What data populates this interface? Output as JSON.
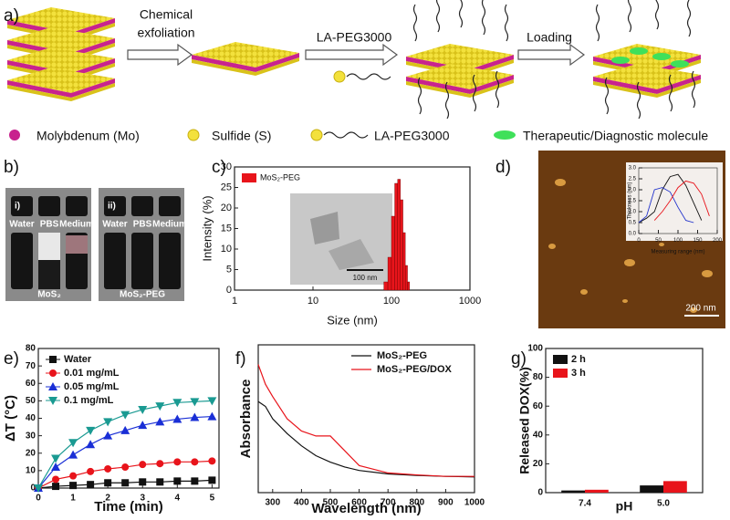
{
  "panels": [
    "a)",
    "b)",
    "c)",
    "d)",
    "e)",
    "f)",
    "g)"
  ],
  "scheme": {
    "steps": [
      [
        "Chemical",
        "exfoliation"
      ],
      [
        "LA-PEG3000"
      ],
      [
        "Loading"
      ]
    ],
    "legend": [
      "Molybdenum (Mo)",
      "Sulfide (S)",
      "LA-PEG3000",
      "Therapeutic/Diagnostic molecule"
    ]
  },
  "photos": [
    {
      "label": "i)",
      "vials": [
        "Water",
        "PBS",
        "Medium"
      ],
      "caption": "MoS₂"
    },
    {
      "label": "ii)",
      "vials": [
        "Water",
        "PBS",
        "Medium"
      ],
      "caption": "MoS₂-PEG"
    }
  ],
  "tem_scale": "100 nm",
  "afm_scale": "200 nm",
  "chart_data": [
    {
      "type": "histogram",
      "xlabel": "Size (nm)",
      "ylabel": "Intensity (%)",
      "xscale": "log",
      "xlim": [
        1,
        1000
      ],
      "xticks": [
        1,
        10,
        100,
        1000
      ],
      "ylim": [
        0,
        30
      ],
      "yticks": [
        0,
        5,
        10,
        15,
        20,
        25,
        30
      ],
      "bins": [
        80,
        90,
        100,
        110,
        120,
        130,
        140,
        150,
        160,
        170
      ],
      "series": [
        {
          "name": "MoS₂-PEG",
          "color": "#e8141b",
          "values": [
            2,
            8,
            18,
            26,
            27,
            22,
            14,
            6,
            2
          ]
        }
      ],
      "legend": "upper left"
    },
    {
      "type": "line",
      "xlabel": "Measuring range (nm)",
      "ylabel": "Thickness (nm)",
      "xlim": [
        0,
        200
      ],
      "xticks": [
        0,
        50,
        100,
        150,
        200
      ],
      "ylim": [
        0,
        3
      ],
      "yticks": [
        {
          "value": 0,
          "label": "0.0"
        },
        {
          "value": 0.5,
          "label": "0.5"
        },
        {
          "value": 1,
          "label": "1.0"
        },
        {
          "value": 1.5,
          "label": "1.5"
        },
        {
          "value": 2,
          "label": "2.0"
        },
        {
          "value": 2.5,
          "label": "2.5"
        },
        {
          "value": 3,
          "label": "3.0"
        }
      ],
      "x": [
        0,
        20,
        40,
        60,
        80,
        100,
        120,
        140,
        160,
        180
      ],
      "series": [
        {
          "color": "#111111",
          "values": [
            0.5,
            0.7,
            1.0,
            2.0,
            2.6,
            2.7,
            2.2,
            1.4,
            0.6,
            null
          ]
        },
        {
          "color": "#2233cc",
          "values": [
            0.5,
            0.8,
            2.0,
            2.1,
            1.9,
            1.2,
            0.6,
            0.5,
            null,
            null
          ]
        },
        {
          "color": "#e8141b",
          "values": [
            null,
            null,
            0.6,
            1.0,
            1.5,
            2.1,
            2.4,
            2.3,
            1.8,
            0.8
          ]
        }
      ]
    },
    {
      "type": "line",
      "xlabel": "Time (min)",
      "ylabel": "ΔT (°C)",
      "xlim": [
        0,
        5.2
      ],
      "xticks": [
        0,
        1,
        2,
        3,
        4,
        5
      ],
      "ylim": [
        0,
        80
      ],
      "yticks": [
        0,
        10,
        20,
        30,
        40,
        50,
        60,
        70,
        80
      ],
      "x": [
        0,
        0.5,
        1,
        1.5,
        2,
        2.5,
        3,
        3.5,
        4,
        4.5,
        5
      ],
      "series": [
        {
          "name": "Water",
          "color": "#111111",
          "marker": "square",
          "values": [
            0,
            1,
            1.5,
            2,
            3,
            3,
            3.5,
            3.5,
            4,
            4,
            4.5
          ]
        },
        {
          "name": "0.01 mg/mL",
          "color": "#e8141b",
          "marker": "circle",
          "values": [
            0,
            5,
            7,
            9.5,
            11,
            12,
            13.5,
            14,
            15,
            15,
            15.5
          ]
        },
        {
          "name": "0.05 mg/mL",
          "color": "#1a2fd6",
          "marker": "triangle",
          "values": [
            0,
            12,
            19,
            25,
            30,
            33,
            36,
            38,
            39.5,
            40.5,
            41
          ]
        },
        {
          "name": "0.1 mg/mL",
          "color": "#1a9a92",
          "marker": "triangle-down",
          "values": [
            0,
            17,
            26,
            33,
            38,
            42,
            45,
            47,
            49,
            49.5,
            50
          ]
        }
      ],
      "legend": "upper left"
    },
    {
      "type": "line",
      "xlabel": "Wavelength (nm)",
      "ylabel": "Absorbance",
      "xlim": [
        250,
        1000
      ],
      "xticks": [
        300,
        400,
        500,
        600,
        700,
        800,
        900,
        1000
      ],
      "ylim": [
        0,
        3
      ],
      "x": [
        250,
        275,
        300,
        350,
        400,
        450,
        500,
        550,
        600,
        700,
        800,
        900,
        1000
      ],
      "series": [
        {
          "name": "MoS₂-PEG",
          "color": "#111111",
          "values": [
            1.85,
            1.75,
            1.5,
            1.2,
            0.95,
            0.75,
            0.62,
            0.52,
            0.45,
            0.38,
            0.35,
            0.33,
            0.32
          ]
        },
        {
          "name": "MoS₂-PEG/DOX",
          "color": "#e8141b",
          "values": [
            2.6,
            2.2,
            1.95,
            1.5,
            1.25,
            1.15,
            1.15,
            0.85,
            0.55,
            0.4,
            0.36,
            0.33,
            0.33
          ]
        }
      ],
      "legend": "upper right"
    },
    {
      "type": "bar",
      "xlabel": "pH",
      "ylabel": "Released DOX(%)",
      "categories": [
        "7.4",
        "5.0"
      ],
      "ylim": [
        0,
        100
      ],
      "yticks": [
        0,
        20,
        40,
        60,
        80,
        100
      ],
      "series": [
        {
          "name": "2 h",
          "color": "#111111",
          "values": [
            1.5,
            5
          ]
        },
        {
          "name": "3 h",
          "color": "#e8141b",
          "values": [
            2,
            8
          ]
        }
      ],
      "legend": "upper left"
    }
  ]
}
